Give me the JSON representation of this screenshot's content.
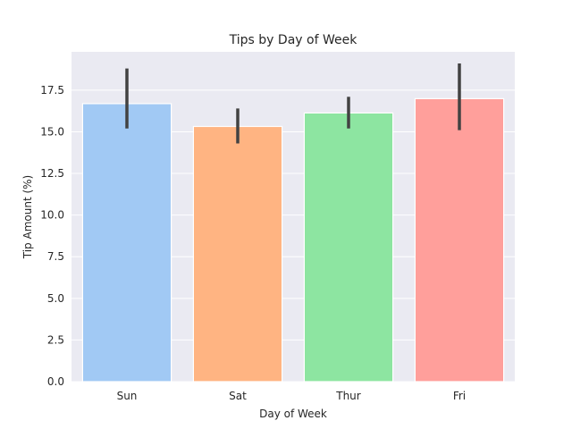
{
  "chart_data": {
    "type": "bar",
    "title": "Tips by Day of Week",
    "xlabel": "Day of Week",
    "ylabel": "Tip Amount (%)",
    "categories": [
      "Sun",
      "Sat",
      "Thur",
      "Fri"
    ],
    "values": [
      16.69,
      15.32,
      16.13,
      16.99
    ],
    "error_low": [
      15.2,
      14.3,
      15.2,
      15.1
    ],
    "error_high": [
      18.8,
      16.4,
      17.1,
      19.1
    ],
    "colors": [
      "#a1c9f4",
      "#ffb482",
      "#8de5a1",
      "#ff9f9b"
    ],
    "yticks": [
      "0.0",
      "2.5",
      "5.0",
      "7.5",
      "10.0",
      "12.5",
      "15.0",
      "17.5"
    ],
    "ylim": [
      0,
      19.8
    ],
    "grid": true,
    "background": "#eaeaf2",
    "error_color": "#424242"
  }
}
